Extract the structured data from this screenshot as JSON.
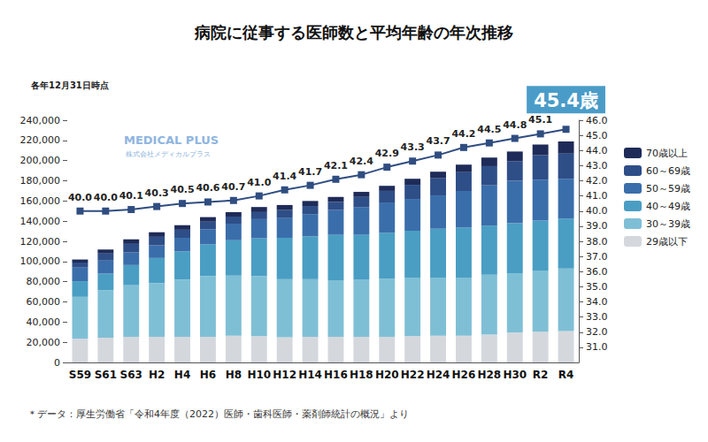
{
  "chart_data": {
    "type": "bar",
    "title": "病院に従事する医師数と平均年齢の年次推移",
    "subtitle": "各年12月31日時点",
    "note": "＊データ：厚生労働省「令和4年度（2022）医師・歯科医師・薬剤師統計の概況」より",
    "logo": "MEDICAL PLUS",
    "logo_sub": "株式会社メディカルプラス",
    "stacked": true,
    "legend": "right",
    "grid": false,
    "categories": [
      "S59",
      "S61",
      "S63",
      "H2",
      "H4",
      "H6",
      "H8",
      "H10",
      "H12",
      "H14",
      "H16",
      "H18",
      "H20",
      "H22",
      "H24",
      "H26",
      "H28",
      "H30",
      "R2",
      "R4"
    ],
    "series": [
      {
        "name": "29歳以下",
        "color": "#d4d8dd",
        "type": "bar",
        "values": [
          23500,
          24500,
          25500,
          25500,
          25500,
          25500,
          26500,
          26000,
          25000,
          25500,
          25500,
          25500,
          25500,
          26000,
          26500,
          26500,
          27500,
          29500,
          30500,
          31000
        ]
      },
      {
        "name": "30～39歳",
        "color": "#7fbfd5",
        "type": "bar",
        "values": [
          41500,
          47000,
          51000,
          53000,
          56500,
          60000,
          59500,
          59500,
          57500,
          57000,
          56000,
          56500,
          57500,
          58000,
          57500,
          57500,
          59500,
          59000,
          60500,
          62000
        ]
      },
      {
        "name": "40～49歳",
        "color": "#4a9ec3",
        "type": "bar",
        "values": [
          15500,
          16500,
          20000,
          25000,
          28000,
          31500,
          35000,
          37500,
          41000,
          42500,
          45000,
          44500,
          45500,
          46500,
          48500,
          49500,
          48500,
          49500,
          49500,
          49500
        ]
      },
      {
        "name": "50～59歳",
        "color": "#3a6eab",
        "type": "bar",
        "values": [
          13500,
          13000,
          12500,
          12500,
          13500,
          15000,
          16500,
          19000,
          19500,
          22000,
          24500,
          27500,
          30000,
          31500,
          33000,
          36500,
          40000,
          42000,
          40500,
          39500
        ]
      },
      {
        "name": "60～69歳",
        "color": "#2e4e88",
        "type": "bar",
        "values": [
          5000,
          7000,
          8500,
          8500,
          8000,
          7500,
          7000,
          7000,
          8000,
          8000,
          8000,
          10000,
          11500,
          14000,
          17000,
          18500,
          19000,
          19500,
          24500,
          25000
        ]
      },
      {
        "name": "70歳以上",
        "color": "#1e2b58",
        "type": "bar",
        "values": [
          3000,
          4000,
          4500,
          4500,
          4500,
          4500,
          4500,
          5000,
          5000,
          5000,
          5000,
          5000,
          5000,
          6000,
          6500,
          7500,
          8500,
          9500,
          10500,
          12000
        ]
      },
      {
        "name": "平均年齢",
        "color": "#2f4d80",
        "type": "line",
        "axis": "y2",
        "marker": "square",
        "data_labels": true,
        "values": [
          40.0,
          40.0,
          40.1,
          40.3,
          40.5,
          40.6,
          40.7,
          41.0,
          41.4,
          41.7,
          42.1,
          42.4,
          42.9,
          43.3,
          43.7,
          44.2,
          44.5,
          44.8,
          45.1,
          45.4
        ],
        "value_labels": [
          "40.0",
          "40.0",
          "40.1",
          "40.3",
          "40.5",
          "40.6",
          "40.7",
          "41.0",
          "41.4",
          "41.7",
          "42.1",
          "42.4",
          "42.9",
          "43.3",
          "43.7",
          "44.2",
          "44.5",
          "44.8",
          "45.1",
          "45.4歳"
        ]
      }
    ],
    "ylim": [
      0,
      240000
    ],
    "yticks": [
      0,
      {
        "value": 20000,
        "label": "20,000"
      },
      {
        "value": 40000,
        "label": "40,000"
      },
      {
        "value": 60000,
        "label": "60,000"
      },
      {
        "value": 80000,
        "label": "80,000"
      },
      {
        "value": 100000,
        "label": "100,000"
      },
      {
        "value": 120000,
        "label": "120,000"
      },
      {
        "value": 140000,
        "label": "140,000"
      },
      {
        "value": 160000,
        "label": "160,000"
      },
      {
        "value": 180000,
        "label": "180,000"
      },
      {
        "value": 200000,
        "label": "200,000"
      },
      {
        "value": 220000,
        "label": "220,000"
      },
      {
        "value": 240000,
        "label": "240,000"
      }
    ],
    "y2lim": [
      30,
      46
    ],
    "y2ticks": [
      {
        "value": 31,
        "label": "31.0"
      },
      {
        "value": 32,
        "label": "32.0"
      },
      {
        "value": 33,
        "label": "33.0"
      },
      {
        "value": 34,
        "label": "34.0"
      },
      {
        "value": 35,
        "label": "35.0"
      },
      {
        "value": 36,
        "label": "36.0"
      },
      {
        "value": 37,
        "label": "37.0"
      },
      {
        "value": 38,
        "label": "38.0"
      },
      {
        "value": 39,
        "label": "39.0"
      },
      {
        "value": 40,
        "label": "40.0"
      },
      {
        "value": 41,
        "label": "41.0"
      },
      {
        "value": 42,
        "label": "42.0"
      },
      {
        "value": 43,
        "label": "43.0"
      },
      {
        "value": 44,
        "label": "44.0"
      },
      {
        "value": 45,
        "label": "45.0"
      },
      {
        "value": 46,
        "label": "46.0"
      }
    ]
  }
}
